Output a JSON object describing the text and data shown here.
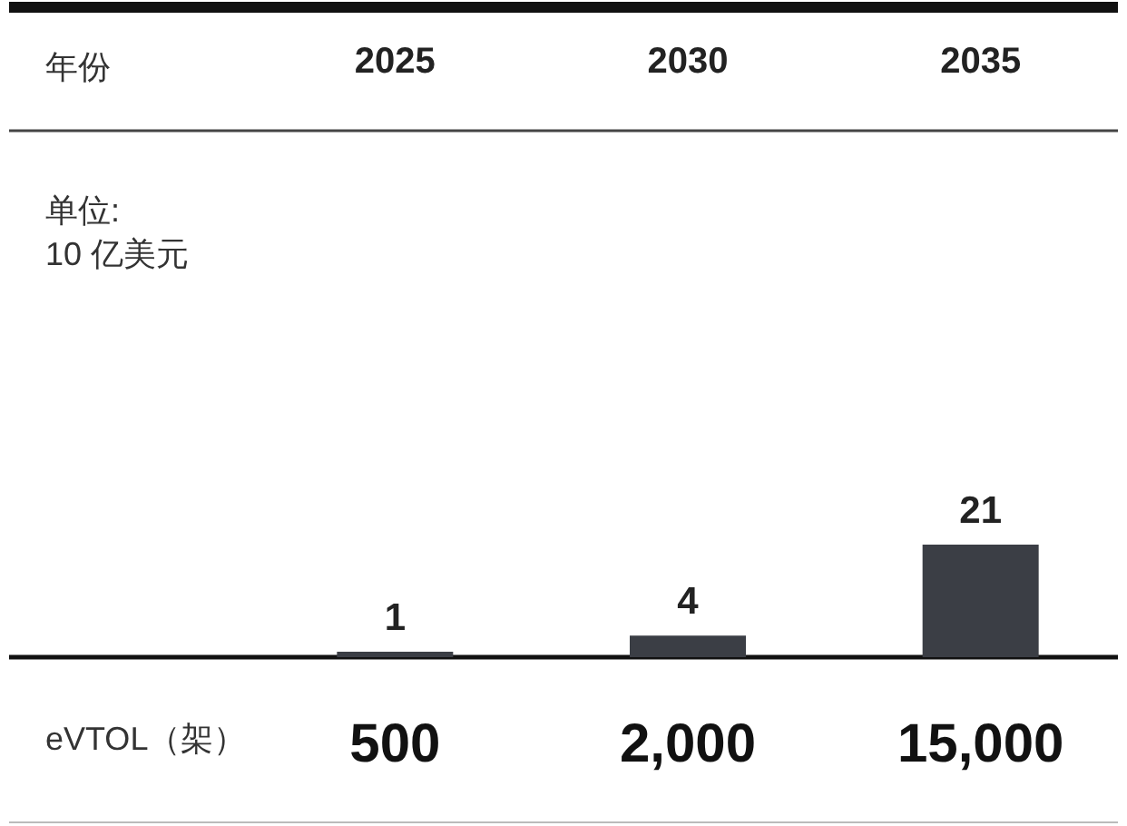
{
  "chart_data": {
    "type": "bar",
    "xlabel": "年份",
    "ylabel": "单位:\n10 亿美元",
    "categories": [
      "2025",
      "2030",
      "2035"
    ],
    "values": [
      1,
      4,
      21
    ],
    "color": "#3b3e45",
    "data_labels": true,
    "annotations": [
      "eVTOL（架）",
      "500",
      "2,000",
      "15,000"
    ]
  }
}
